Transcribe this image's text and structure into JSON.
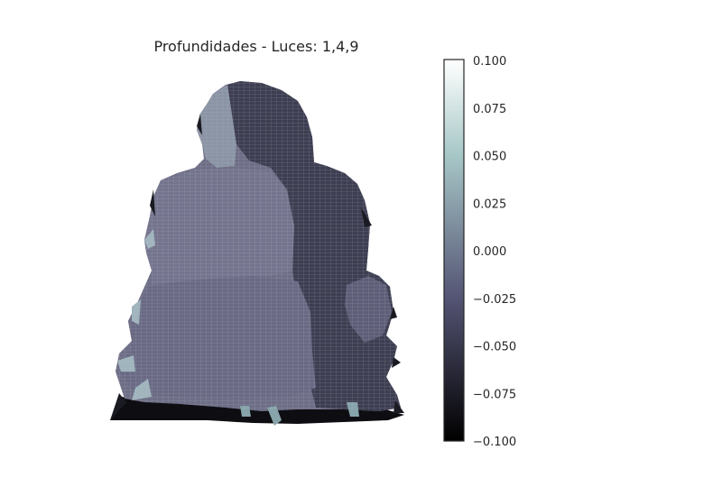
{
  "chart_data": {
    "type": "surface3d",
    "title": "Profundidades - Luces: 1,4,9",
    "colormap": "bone",
    "colorbar": {
      "min": -0.1,
      "max": 0.1,
      "ticks": [
        0.1,
        0.075,
        0.05,
        0.025,
        0.0,
        -0.025,
        -0.05,
        -0.075,
        -0.1
      ],
      "tick_labels": [
        "0.100",
        "0.075",
        "0.050",
        "0.025",
        "0.000",
        "−0.025",
        "−0.050",
        "−0.075",
        "−0.100"
      ]
    },
    "axes_visible": false,
    "grid": false
  }
}
